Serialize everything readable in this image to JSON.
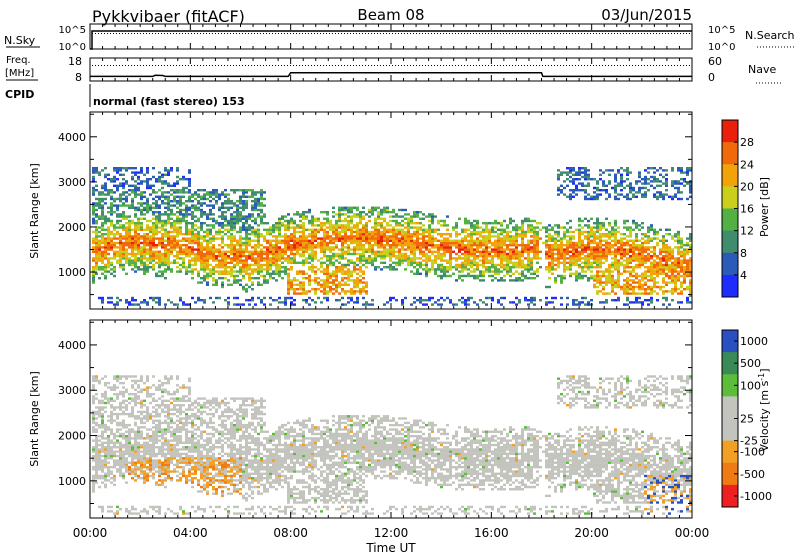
{
  "header": {
    "station": "Pykkvibaer (fitACF)",
    "beam": "Beam 08",
    "date": "03/Jun/2015"
  },
  "summary_panels": {
    "nsky": {
      "label": "N.Sky",
      "ticks": [
        "10^5",
        "10^0"
      ],
      "right_ticks": [
        "10^5",
        "10^0"
      ],
      "right_label": "N.Search"
    },
    "freq": {
      "label_line1": "Freq.",
      "label_line2": "[MHz]",
      "ticks": [
        "18",
        "8"
      ],
      "right_ticks": [
        "60",
        "0"
      ],
      "right_label": "Nave",
      "freq_mhz": [
        {
          "t": 0.0,
          "v": 10.0
        },
        {
          "t": 2.5,
          "v": 10.0
        },
        {
          "t": 2.6,
          "v": 10.5
        },
        {
          "t": 2.9,
          "v": 10.4
        },
        {
          "t": 3.0,
          "v": 10.0
        },
        {
          "t": 7.9,
          "v": 10.0
        },
        {
          "t": 8.0,
          "v": 11.6
        },
        {
          "t": 18.0,
          "v": 11.6
        },
        {
          "t": 18.05,
          "v": 10.0
        },
        {
          "t": 24.0,
          "v": 10.0
        }
      ]
    },
    "cpid": {
      "label": "CPID",
      "text": "normal (fast stereo) 153"
    }
  },
  "chart_data": [
    {
      "type": "heatmap",
      "name": "power",
      "ylabel": "Slant Range [km]",
      "ylim": [
        180,
        4550
      ],
      "yticks": [
        1000,
        2000,
        3000,
        4000
      ],
      "colorbar": {
        "label": "Power [dB]",
        "range": [
          0,
          32
        ],
        "ticks": [
          "4",
          "8",
          "12",
          "16",
          "20",
          "24",
          "28"
        ],
        "colors": [
          "#1e2cff",
          "#2a5bb8",
          "#3f8c6e",
          "#52b044",
          "#c9cf1a",
          "#f3a30a",
          "#f06a0c",
          "#e8200c"
        ]
      }
    },
    {
      "type": "heatmap",
      "name": "velocity",
      "ylabel": "Slant Range [km]",
      "ylim": [
        180,
        4550
      ],
      "yticks": [
        1000,
        2000,
        3000,
        4000
      ],
      "colorbar": {
        "label": "Velocity [m s^-1]",
        "ticks": [
          "1000",
          "500",
          "100",
          "25",
          "-25",
          "-100",
          "-500",
          "-1000"
        ],
        "colors": [
          "#2a4fc0",
          "#3a8a58",
          "#5bbd3a",
          "#c4c4be",
          "#c4c4be",
          "#f2a024",
          "#f07a14",
          "#ee2020"
        ]
      }
    }
  ],
  "xaxis": {
    "label": "Time UT",
    "ticks": [
      "00:00",
      "04:00",
      "08:00",
      "12:00",
      "16:00",
      "20:00",
      "00:00"
    ],
    "range_hours": [
      0,
      24
    ]
  }
}
